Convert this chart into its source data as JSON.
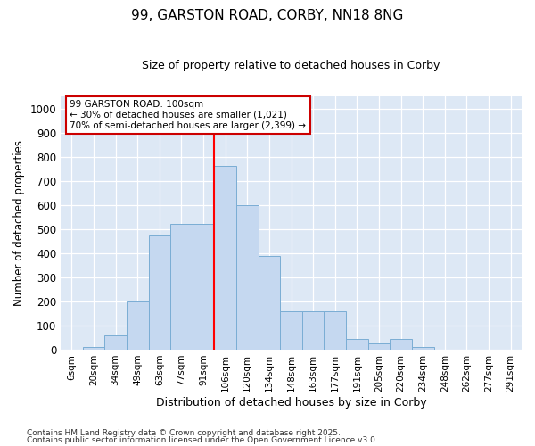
{
  "title": "99, GARSTON ROAD, CORBY, NN18 8NG",
  "subtitle": "Size of property relative to detached houses in Corby",
  "xlabel": "Distribution of detached houses by size in Corby",
  "ylabel": "Number of detached properties",
  "categories": [
    "6sqm",
    "20sqm",
    "34sqm",
    "49sqm",
    "63sqm",
    "77sqm",
    "91sqm",
    "106sqm",
    "120sqm",
    "134sqm",
    "148sqm",
    "163sqm",
    "177sqm",
    "191sqm",
    "205sqm",
    "220sqm",
    "234sqm",
    "248sqm",
    "262sqm",
    "277sqm",
    "291sqm"
  ],
  "values": [
    0,
    10,
    60,
    200,
    475,
    520,
    520,
    760,
    600,
    390,
    160,
    160,
    160,
    45,
    25,
    45,
    10,
    0,
    0,
    0,
    0
  ],
  "bar_color": "#c5d8f0",
  "bar_edge_color": "#7aadd4",
  "vline_color": "red",
  "annotation_title": "99 GARSTON ROAD: 100sqm",
  "annotation_line1": "← 30% of detached houses are smaller (1,021)",
  "annotation_line2": "70% of semi-detached houses are larger (2,399) →",
  "annotation_box_color": "white",
  "annotation_box_edge": "#cc0000",
  "ylim": [
    0,
    1000
  ],
  "yticks": [
    0,
    100,
    200,
    300,
    400,
    500,
    600,
    700,
    800,
    900,
    1000
  ],
  "grid_color": "#d0d8e8",
  "background_color": "#dde8f5",
  "footer1": "Contains HM Land Registry data © Crown copyright and database right 2025.",
  "footer2": "Contains public sector information licensed under the Open Government Licence v3.0."
}
